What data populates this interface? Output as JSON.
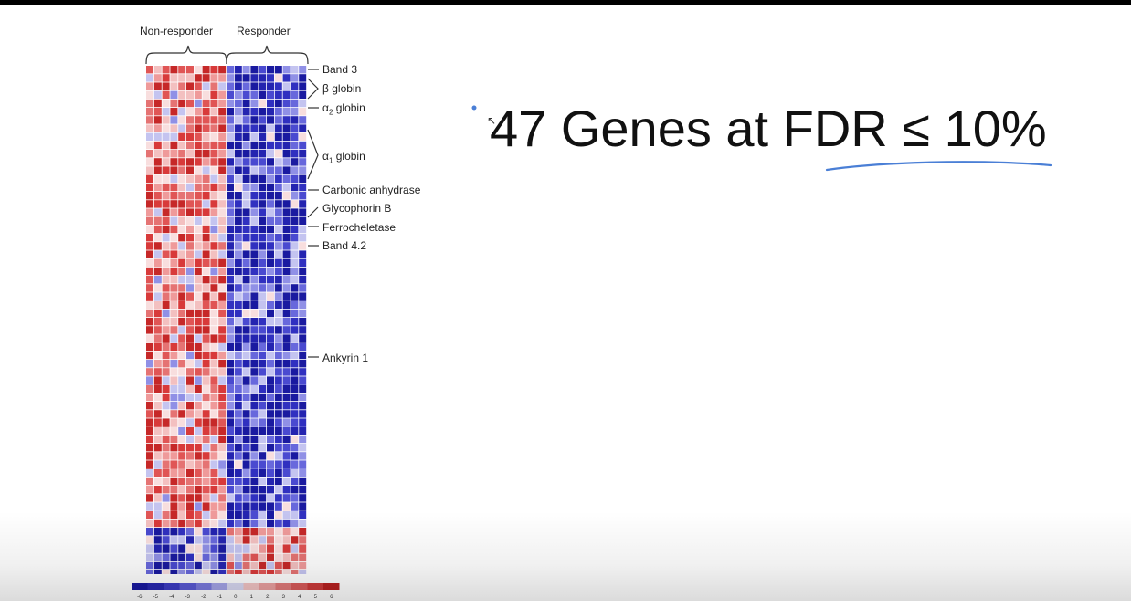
{
  "slide": {
    "headline": "47 Genes at FDR ≤ 10%",
    "annotation_color": "#4a7fd6"
  },
  "heatmap": {
    "group_labels": [
      "Non-responder",
      "Responder"
    ],
    "gene_labels": [
      {
        "id": "band3",
        "name": "Band 3"
      },
      {
        "id": "beta-globin",
        "name": "β globin"
      },
      {
        "id": "alpha2-globin",
        "name": "α",
        "sub": "2",
        "suffix": " globin"
      },
      {
        "id": "alpha1-globin",
        "name": "α",
        "sub": "1",
        "suffix": " globin"
      },
      {
        "id": "carbonic-anhydrase",
        "name": "Carbonic anhydrase"
      },
      {
        "id": "glycophorin-b",
        "name": "Glycophorin B"
      },
      {
        "id": "ferrocheletase",
        "name": "Ferrocheletase"
      },
      {
        "id": "band42",
        "name": "Band 4.2"
      },
      {
        "id": "ankyrin1",
        "name": "Ankyrin 1"
      }
    ],
    "colors": {
      "high": "#d32f2f",
      "low": "#1a1aa0"
    },
    "scale_ticks": [
      "-6",
      "-5",
      "-4",
      "-3",
      "-2",
      "-1",
      "0",
      "1",
      "2",
      "3",
      "4",
      "5",
      "6"
    ]
  }
}
